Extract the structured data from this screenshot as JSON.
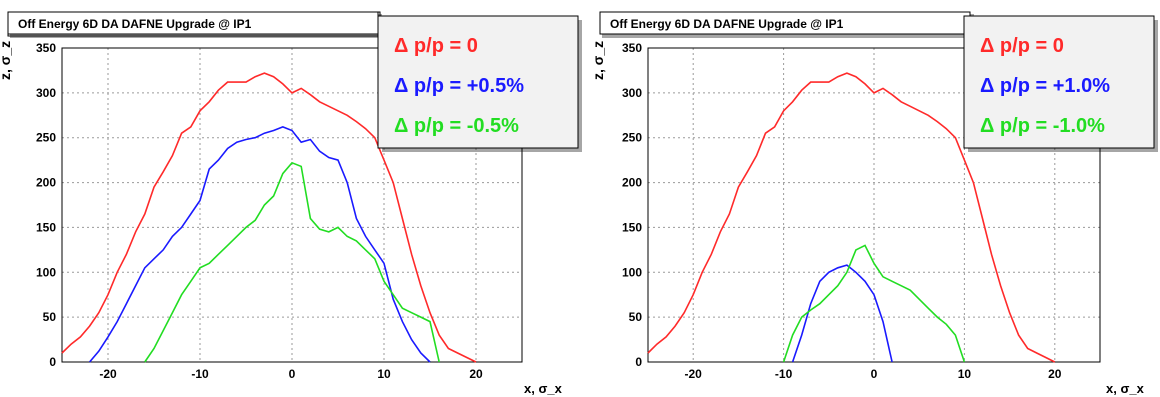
{
  "chart_data": [
    {
      "type": "line",
      "title": "Off Energy 6D DA DAFNE Upgrade @ IP1",
      "xlabel": "x, σ_x",
      "ylabel": "z, σ_z",
      "xlim": [
        -25,
        25
      ],
      "ylim": [
        0,
        350
      ],
      "x_ticks": [
        -20,
        -10,
        0,
        10,
        20
      ],
      "y_ticks": [
        0,
        50,
        100,
        150,
        200,
        250,
        300,
        350
      ],
      "grid": true,
      "legend_position": "top-right",
      "series": [
        {
          "name": "Δ p/p = 0",
          "color": "#ff2a2a",
          "x": [
            -25,
            -24,
            -23,
            -22,
            -21,
            -20,
            -19,
            -18,
            -17,
            -16,
            -15,
            -14,
            -13,
            -12,
            -11,
            -10,
            -9,
            -8,
            -7,
            -6,
            -5,
            -4,
            -3,
            -2,
            -1,
            0,
            1,
            2,
            3,
            4,
            5,
            6,
            7,
            8,
            9,
            10,
            11,
            12,
            13,
            14,
            15,
            16,
            17,
            18,
            19,
            20
          ],
          "y": [
            10,
            20,
            28,
            40,
            55,
            75,
            100,
            120,
            145,
            165,
            195,
            212,
            230,
            255,
            262,
            280,
            290,
            303,
            312,
            312,
            312,
            318,
            322,
            318,
            310,
            300,
            305,
            298,
            290,
            285,
            280,
            275,
            268,
            260,
            250,
            225,
            200,
            160,
            120,
            85,
            55,
            30,
            15,
            10,
            5,
            0
          ]
        },
        {
          "name": "Δ p/p = +0.5%",
          "color": "#1a1aff",
          "x": [
            -22,
            -21,
            -20,
            -19,
            -18,
            -17,
            -16,
            -15,
            -14,
            -13,
            -12,
            -11,
            -10,
            -9,
            -8,
            -7,
            -6,
            -5,
            -4,
            -3,
            -2,
            -1,
            0,
            1,
            2,
            3,
            4,
            5,
            6,
            7,
            8,
            9,
            10,
            11,
            12,
            13,
            14,
            15
          ],
          "y": [
            0,
            12,
            28,
            45,
            65,
            85,
            105,
            115,
            125,
            140,
            150,
            165,
            180,
            215,
            225,
            238,
            245,
            248,
            250,
            255,
            258,
            262,
            258,
            245,
            248,
            235,
            228,
            225,
            200,
            160,
            140,
            125,
            110,
            70,
            45,
            25,
            10,
            0
          ]
        },
        {
          "name": "Δ p/p = -0.5%",
          "color": "#22dd22",
          "x": [
            -16,
            -15,
            -14,
            -13,
            -12,
            -11,
            -10,
            -9,
            -8,
            -7,
            -6,
            -5,
            -4,
            -3,
            -2,
            -1,
            0,
            1,
            2,
            3,
            4,
            5,
            6,
            7,
            8,
            9,
            10,
            11,
            12,
            13,
            14,
            15,
            16
          ],
          "y": [
            0,
            15,
            35,
            55,
            75,
            90,
            105,
            110,
            120,
            130,
            140,
            150,
            158,
            175,
            185,
            210,
            222,
            218,
            160,
            148,
            145,
            150,
            140,
            135,
            125,
            115,
            90,
            75,
            60,
            55,
            50,
            45,
            0
          ]
        }
      ]
    },
    {
      "type": "line",
      "title": "Off Energy 6D DA DAFNE Upgrade @ IP1",
      "xlabel": "x, σ_x",
      "ylabel": "z, σ_z",
      "xlim": [
        -25,
        25
      ],
      "ylim": [
        0,
        350
      ],
      "x_ticks": [
        -20,
        -10,
        0,
        10,
        20
      ],
      "y_ticks": [
        0,
        50,
        100,
        150,
        200,
        250,
        300,
        350
      ],
      "grid": true,
      "legend_position": "top-right",
      "series": [
        {
          "name": "Δ p/p = 0",
          "color": "#ff2a2a",
          "x": [
            -25,
            -24,
            -23,
            -22,
            -21,
            -20,
            -19,
            -18,
            -17,
            -16,
            -15,
            -14,
            -13,
            -12,
            -11,
            -10,
            -9,
            -8,
            -7,
            -6,
            -5,
            -4,
            -3,
            -2,
            -1,
            0,
            1,
            2,
            3,
            4,
            5,
            6,
            7,
            8,
            9,
            10,
            11,
            12,
            13,
            14,
            15,
            16,
            17,
            18,
            19,
            20
          ],
          "y": [
            10,
            20,
            28,
            40,
            55,
            75,
            100,
            120,
            145,
            165,
            195,
            212,
            230,
            255,
            262,
            280,
            290,
            303,
            312,
            312,
            312,
            318,
            322,
            318,
            310,
            300,
            305,
            298,
            290,
            285,
            280,
            275,
            268,
            260,
            250,
            225,
            200,
            160,
            120,
            85,
            55,
            30,
            15,
            10,
            5,
            0
          ]
        },
        {
          "name": "Δ p/p = +1.0%",
          "color": "#1a1aff",
          "x": [
            -9,
            -8,
            -7,
            -6,
            -5,
            -4,
            -3,
            -2,
            -1,
            0,
            1,
            2
          ],
          "y": [
            0,
            30,
            65,
            90,
            100,
            105,
            108,
            100,
            90,
            75,
            45,
            0
          ]
        },
        {
          "name": "Δ p/p = -1.0%",
          "color": "#22dd22",
          "x": [
            -10,
            -9,
            -8,
            -7,
            -6,
            -5,
            -4,
            -3,
            -2,
            -1,
            0,
            1,
            2,
            3,
            4,
            5,
            6,
            7,
            8,
            9,
            10
          ],
          "y": [
            0,
            30,
            50,
            58,
            65,
            75,
            85,
            100,
            125,
            130,
            110,
            95,
            90,
            85,
            80,
            70,
            60,
            50,
            42,
            30,
            0
          ]
        }
      ]
    }
  ]
}
